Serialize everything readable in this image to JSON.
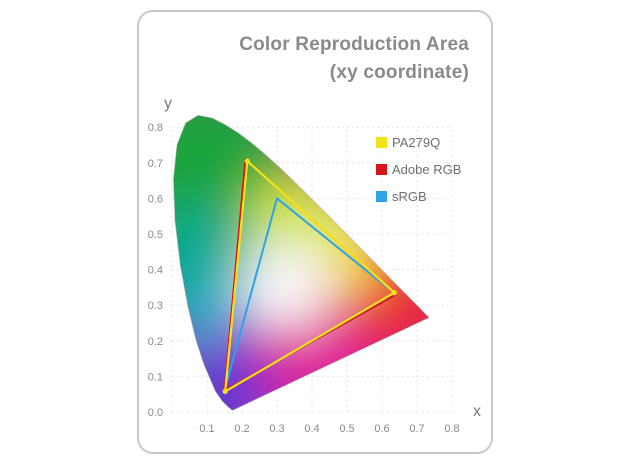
{
  "chart_data": {
    "type": "scatter",
    "title": "Color Reproduction Area",
    "subtitle": "(xy coordinate)",
    "xlabel": "x",
    "ylabel": "y",
    "xlim": [
      0,
      0.8
    ],
    "ylim": [
      0,
      0.8
    ],
    "x_ticks": [
      "0.1",
      "0.2",
      "0.3",
      "0.4",
      "0.5",
      "0.6",
      "0.7",
      "0.8"
    ],
    "y_ticks": [
      "0.0",
      "0.1",
      "0.2",
      "0.3",
      "0.4",
      "0.5",
      "0.6",
      "0.7",
      "0.8"
    ],
    "grid": true,
    "legend_position": "top-right",
    "series": [
      {
        "name": "PA279Q",
        "color": "#f5e31a",
        "points": [
          [
            0.635,
            0.335
          ],
          [
            0.215,
            0.705
          ],
          [
            0.152,
            0.058
          ]
        ]
      },
      {
        "name": "Adobe RGB",
        "color": "#d7141a",
        "points": [
          [
            0.64,
            0.33
          ],
          [
            0.21,
            0.71
          ],
          [
            0.15,
            0.06
          ]
        ]
      },
      {
        "name": "sRGB",
        "color": "#2ea3e6",
        "points": [
          [
            0.64,
            0.33
          ],
          [
            0.3,
            0.6
          ],
          [
            0.15,
            0.06
          ]
        ]
      }
    ],
    "spectral_locus": [
      [
        0.1741,
        0.005
      ],
      [
        0.1738,
        0.0049
      ],
      [
        0.1733,
        0.0048
      ],
      [
        0.1726,
        0.0048
      ],
      [
        0.1714,
        0.0051
      ],
      [
        0.1689,
        0.0069
      ],
      [
        0.1644,
        0.0109
      ],
      [
        0.1566,
        0.0177
      ],
      [
        0.144,
        0.0297
      ],
      [
        0.1241,
        0.0578
      ],
      [
        0.0913,
        0.1327
      ],
      [
        0.0687,
        0.2007
      ],
      [
        0.0454,
        0.295
      ],
      [
        0.0235,
        0.4127
      ],
      [
        0.0082,
        0.5384
      ],
      [
        0.0039,
        0.6548
      ],
      [
        0.0139,
        0.7502
      ],
      [
        0.0389,
        0.812
      ],
      [
        0.0743,
        0.8338
      ],
      [
        0.1142,
        0.8262
      ],
      [
        0.1547,
        0.8059
      ],
      [
        0.1929,
        0.7816
      ],
      [
        0.2296,
        0.7543
      ],
      [
        0.2658,
        0.7243
      ],
      [
        0.3016,
        0.6923
      ],
      [
        0.3373,
        0.6589
      ],
      [
        0.3731,
        0.6245
      ],
      [
        0.4087,
        0.5896
      ],
      [
        0.4441,
        0.5547
      ],
      [
        0.4788,
        0.5202
      ],
      [
        0.5125,
        0.4866
      ],
      [
        0.5448,
        0.4544
      ],
      [
        0.5752,
        0.4242
      ],
      [
        0.6029,
        0.3965
      ],
      [
        0.627,
        0.3725
      ],
      [
        0.6482,
        0.3514
      ],
      [
        0.6658,
        0.334
      ],
      [
        0.6801,
        0.3197
      ],
      [
        0.6915,
        0.3083
      ],
      [
        0.7006,
        0.2993
      ],
      [
        0.7079,
        0.292
      ],
      [
        0.714,
        0.2859
      ],
      [
        0.719,
        0.2809
      ],
      [
        0.723,
        0.277
      ],
      [
        0.726,
        0.274
      ],
      [
        0.7283,
        0.2717
      ],
      [
        0.73,
        0.27
      ],
      [
        0.7311,
        0.2689
      ],
      [
        0.732,
        0.268
      ],
      [
        0.7327,
        0.2673
      ],
      [
        0.7334,
        0.2666
      ],
      [
        0.734,
        0.266
      ],
      [
        0.7344,
        0.2656
      ],
      [
        0.7346,
        0.2654
      ],
      [
        0.7347,
        0.2653
      ]
    ]
  }
}
